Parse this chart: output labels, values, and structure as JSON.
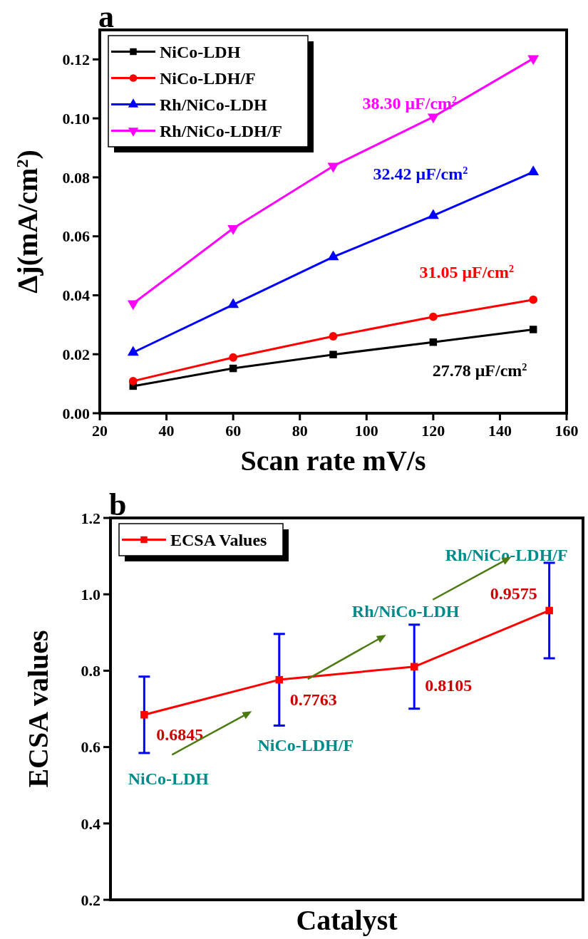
{
  "chart_data": [
    {
      "type": "line",
      "title": "a",
      "xlabel": "Scan rate mV/s",
      "ylabel": "Δj(mA/cm$^{2}$)",
      "x": [
        30,
        60,
        90,
        120,
        150
      ],
      "series": [
        {
          "name": "NiCo-LDH",
          "color": "#000000",
          "marker": "square",
          "values": [
            0.0092,
            0.0152,
            0.0199,
            0.0241,
            0.0284
          ]
        },
        {
          "name": "NiCo-LDH/F",
          "color": "#ff0000",
          "marker": "circle",
          "values": [
            0.0109,
            0.0189,
            0.0261,
            0.0327,
            0.0385
          ]
        },
        {
          "name": "Rh/NiCo-LDH",
          "color": "#0000ff",
          "marker": "triangle",
          "values": [
            0.0206,
            0.0368,
            0.053,
            0.067,
            0.0818
          ]
        },
        {
          "name": "Rh/NiCo-LDH/F",
          "color": "#ff00ff",
          "marker": "triangle-down",
          "values": [
            0.0372,
            0.0627,
            0.0838,
            0.1005,
            0.1203
          ]
        }
      ],
      "annotations": [
        "27.78 μF/cm$^{2}$",
        "31.05 μF/cm$^{2}$",
        "32.42 μF/cm$^{2}$",
        "38.30 μF/cm$^{2}$"
      ],
      "xlim": [
        20,
        160
      ],
      "xticks": [
        20,
        40,
        60,
        80,
        100,
        120,
        140,
        160
      ],
      "ylim": [
        0,
        0.13
      ],
      "yticks": [
        {
          "value": 0,
          "label": "0.00"
        },
        {
          "value": 0.02,
          "label": "0.02"
        },
        {
          "value": 0.04,
          "label": "0.04"
        },
        {
          "value": 0.06,
          "label": "0.06"
        },
        {
          "value": 0.08,
          "label": "0.08"
        },
        {
          "value": 0.1,
          "label": "0.10"
        },
        {
          "value": 0.12,
          "label": "0.12"
        }
      ],
      "legend": "top left",
      "grid": false,
      "line_style": "solid"
    },
    {
      "type": "line",
      "title": "b",
      "xlabel": "Catalyst",
      "ylabel": "ECSA values",
      "categories": [
        null,
        null,
        null,
        null
      ],
      "series": [
        {
          "name": "ECSA Values",
          "color": "#ff0000",
          "marker": "square",
          "values": [
            0.6845,
            0.7763,
            0.8105,
            0.9575
          ],
          "errors": [
            0.1,
            0.12,
            0.11,
            0.125
          ],
          "value_labels": [
            "0.6845",
            "0.7763",
            "0.8105",
            "0.9575"
          ]
        }
      ],
      "annotations": [
        "NiCo-LDH",
        "NiCo-LDH/F",
        "Rh/NiCo-LDH",
        "Rh/NiCo-LDH/F"
      ],
      "ylim": [
        0.2,
        1.2
      ],
      "yticks": [
        0.2,
        0.4,
        0.6,
        0.8,
        {
          "value": 1.0,
          "label": "1.0"
        },
        1.2
      ],
      "tick_labels": "y",
      "legend": "top left",
      "grid": false,
      "line_style": "solid"
    }
  ]
}
